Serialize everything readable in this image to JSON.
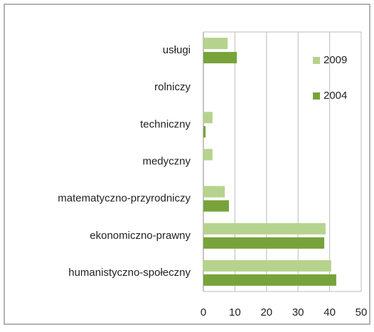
{
  "chart_data": {
    "type": "hbar",
    "categories": [
      "usługi",
      "rolniczy",
      "techniczny",
      "medyczny",
      "matematyczno-przyrodniczy",
      "ekonomiczno-prawny",
      "humanistyczno-społeczny"
    ],
    "series": [
      {
        "name": "2009",
        "color": "#b6d38d",
        "values": [
          7.7,
          0,
          2.9,
          2.9,
          6.8,
          38.7,
          40.5
        ]
      },
      {
        "name": "2004",
        "color": "#77a33a",
        "values": [
          10.6,
          0,
          0.7,
          0,
          8.1,
          38.3,
          42.1
        ]
      }
    ],
    "xlim": [
      0,
      50
    ],
    "xticks": [
      0,
      10,
      20,
      30,
      40,
      50
    ],
    "grid": true,
    "legend": "upper right"
  }
}
